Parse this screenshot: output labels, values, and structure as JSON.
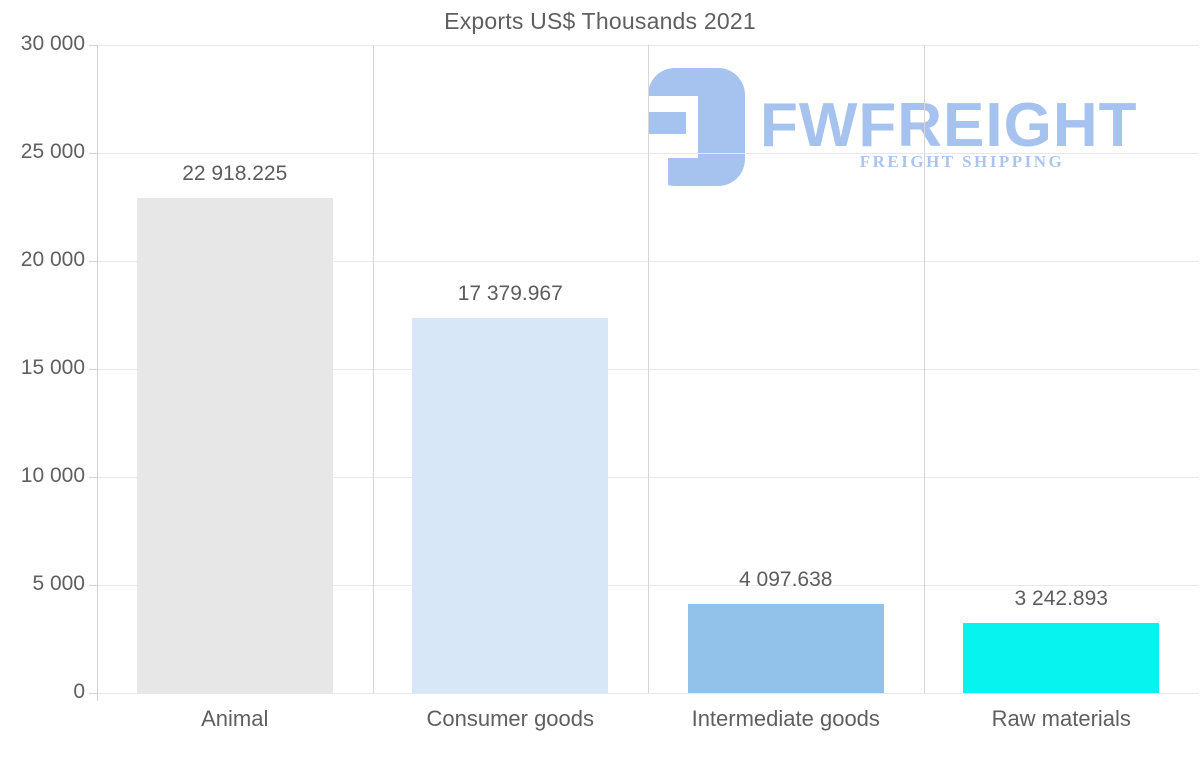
{
  "title": "Exports US$ Thousands 2021",
  "watermark": {
    "brand": "FWFREIGHT",
    "tagline": "FREIGHT SHIPPING",
    "logo_color": "#a6c2ee",
    "tagline_color": "#abc5ee"
  },
  "chart_data": {
    "type": "bar",
    "title": "Exports US$ Thousands 2021",
    "categories": [
      "Animal",
      "Consumer goods",
      "Intermediate goods",
      "Raw materials"
    ],
    "values": [
      22918.225,
      17379.967,
      4097.638,
      3242.893
    ],
    "value_labels": [
      "22 918.225",
      "17 379.967",
      "4 097.638",
      "3 242.893"
    ],
    "bar_colors": [
      "#e7e7e7",
      "#d7e7f8",
      "#92c1e9",
      "#06f3f0"
    ],
    "xlabel": "",
    "ylabel": "",
    "ylim": [
      0,
      30000
    ],
    "y_ticks": [
      0,
      5000,
      10000,
      15000,
      20000,
      25000,
      30000
    ],
    "y_tick_labels": [
      "0",
      "5 000",
      "10 000",
      "15 000",
      "20 000",
      "25 000",
      "30 000"
    ],
    "grid": "horizontal gridlines at each y tick, vertical separators between category bands",
    "legend": "none"
  },
  "colors": {
    "text": "#5f5f5f",
    "grid_horizontal": "#e8e8e8",
    "grid_vertical": "#d6d6d6",
    "axis": "#d2d2d2",
    "background": "#ffffff"
  }
}
